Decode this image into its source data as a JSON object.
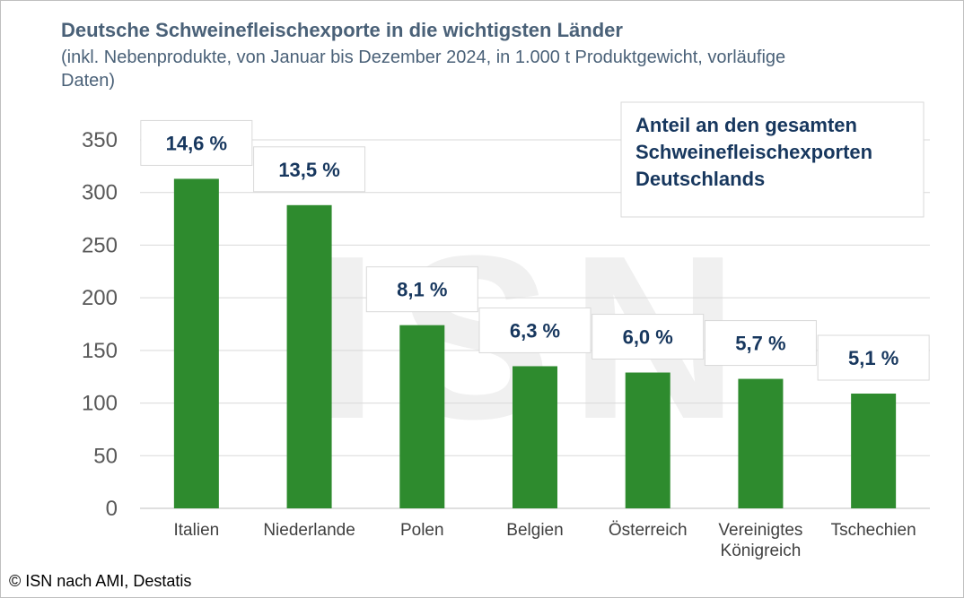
{
  "chart_data": {
    "type": "bar",
    "title": "Deutsche Schweinefleischexporte in die wichtigsten Länder",
    "subtitle": "(inkl. Nebenprodukte, von Januar bis Dezember 2024, in 1.000 t Produktgewicht, vorläufige Daten)",
    "categories": [
      "Italien",
      "Niederlande",
      "Polen",
      "Belgien",
      "Österreich",
      "Vereinigtes Königreich",
      "Tschechien"
    ],
    "values": [
      313,
      288,
      174,
      135,
      129,
      123,
      109
    ],
    "data_labels": [
      "14,6 %",
      "13,5 %",
      "8,1 %",
      "6,3 %",
      "6,0 %",
      "5,7 %",
      "5,1 %"
    ],
    "ylim": [
      0,
      350
    ],
    "yticks": [
      0,
      50,
      100,
      150,
      200,
      250,
      300,
      350
    ],
    "grid": true,
    "bar_color": "#2e8b2e",
    "label_color": "#17375e",
    "annotation": "Anteil an den gesamten Schweinefleischexporten Deutschlands",
    "watermark": "ISN",
    "source": "© ISN nach AMI, Destatis"
  }
}
